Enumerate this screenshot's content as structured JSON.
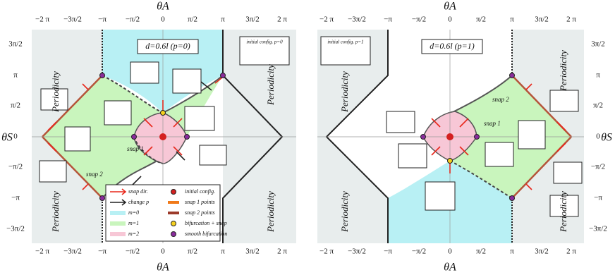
{
  "axes": {
    "x_label": "θA",
    "y_label": "θS",
    "xticks": [
      "−2 π",
      "−3π/2",
      "−π",
      "−π/2",
      "0",
      "π/2",
      "π",
      "3π/2",
      "2 π"
    ],
    "yticks": [
      "3π/2",
      "π",
      "π/2",
      "0",
      "−π/2",
      "−π",
      "−3π/2"
    ]
  },
  "panels": [
    {
      "title": "d=0.6l (p=0)",
      "inset_label": "initial config. p=0",
      "periodicity_labels": [
        "Periodicity",
        "Periodicity",
        "Periodicity",
        "Periodicity"
      ],
      "snap_labels": [
        "snap 1",
        "snap 2"
      ],
      "legend": [
        "snap dir.",
        "change p",
        "m=0",
        "m=1",
        "m=2",
        "initial config.",
        "snap 1 points",
        "snap 2 points",
        "bifurcation + snap",
        "smooth bifurcation"
      ]
    },
    {
      "title": "d=0.6l (p=1)",
      "inset_label": "initial config. p=1",
      "periodicity_labels": [
        "Periodicity",
        "Periodicity",
        "Periodicity",
        "Periodicity"
      ],
      "snap_labels": [
        "snap 1",
        "snap 2"
      ]
    }
  ]
}
